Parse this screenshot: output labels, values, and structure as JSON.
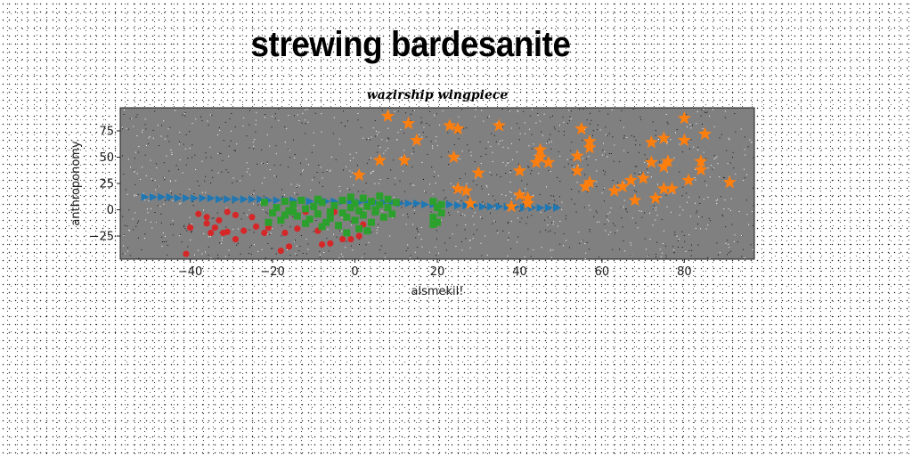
{
  "figure_title": "strewing bardesanite",
  "chart_data": {
    "type": "scatter",
    "title": "wazirship wingpiece",
    "xlabel": "alsmekil!",
    "ylabel": "anthroponomy",
    "xlim": [
      -57,
      97
    ],
    "ylim": [
      -47,
      97
    ],
    "xticks": [
      -40,
      -20,
      0,
      20,
      40,
      60,
      80
    ],
    "yticks": [
      -25,
      0,
      25,
      50,
      75
    ],
    "grid": false,
    "background": "#808080",
    "series": [
      {
        "marker": "triangle-right",
        "color": "#1f77b4",
        "points": [
          [
            -51,
            12
          ],
          [
            -49,
            12
          ],
          [
            -47,
            12
          ],
          [
            -45,
            12
          ],
          [
            -43,
            11
          ],
          [
            -41,
            11
          ],
          [
            -39,
            11
          ],
          [
            -37,
            11
          ],
          [
            -35,
            11
          ],
          [
            -33,
            10
          ],
          [
            -31,
            10
          ],
          [
            -29,
            10
          ],
          [
            -27,
            10
          ],
          [
            -25,
            10
          ],
          [
            -23,
            10
          ],
          [
            -21,
            9
          ],
          [
            -19,
            9
          ],
          [
            -17,
            9
          ],
          [
            -15,
            9
          ],
          [
            -13,
            9
          ],
          [
            -11,
            8
          ],
          [
            -9,
            8
          ],
          [
            -7,
            8
          ],
          [
            -5,
            8
          ],
          [
            -3,
            8
          ],
          [
            -1,
            8
          ],
          [
            1,
            7
          ],
          [
            3,
            7
          ],
          [
            5,
            7
          ],
          [
            7,
            7
          ],
          [
            9,
            7
          ],
          [
            11,
            6
          ],
          [
            13,
            6
          ],
          [
            15,
            6
          ],
          [
            17,
            5
          ],
          [
            19,
            5
          ],
          [
            21,
            5
          ],
          [
            23,
            5
          ],
          [
            25,
            4
          ],
          [
            27,
            4
          ],
          [
            29,
            4
          ],
          [
            31,
            3
          ],
          [
            33,
            3
          ],
          [
            35,
            3
          ],
          [
            37,
            3
          ],
          [
            39,
            3
          ],
          [
            41,
            2
          ],
          [
            43,
            2
          ],
          [
            45,
            2
          ],
          [
            47,
            2
          ],
          [
            49,
            2
          ]
        ]
      },
      {
        "marker": "star",
        "color": "#ff7f0e",
        "points": [
          [
            8,
            89
          ],
          [
            13,
            82
          ],
          [
            15,
            66
          ],
          [
            12,
            47
          ],
          [
            6,
            47
          ],
          [
            1,
            33
          ],
          [
            23,
            80
          ],
          [
            25,
            77
          ],
          [
            35,
            80
          ],
          [
            24,
            50
          ],
          [
            30,
            35
          ],
          [
            25,
            20
          ],
          [
            27,
            18
          ],
          [
            28,
            6
          ],
          [
            38,
            3
          ],
          [
            40,
            37
          ],
          [
            40,
            14
          ],
          [
            42,
            11
          ],
          [
            42,
            6
          ],
          [
            44,
            45
          ],
          [
            45,
            50
          ],
          [
            45,
            57
          ],
          [
            47,
            45
          ],
          [
            54,
            51
          ],
          [
            55,
            77
          ],
          [
            57,
            65
          ],
          [
            57,
            59
          ],
          [
            54,
            37
          ],
          [
            57,
            26
          ],
          [
            56,
            22
          ],
          [
            63,
            18
          ],
          [
            65,
            22
          ],
          [
            67,
            28
          ],
          [
            68,
            9
          ],
          [
            70,
            30
          ],
          [
            72,
            64
          ],
          [
            72,
            45
          ],
          [
            73,
            11
          ],
          [
            75,
            68
          ],
          [
            75,
            41
          ],
          [
            75,
            20
          ],
          [
            76,
            46
          ],
          [
            77,
            20
          ],
          [
            80,
            87
          ],
          [
            80,
            66
          ],
          [
            81,
            28
          ],
          [
            84,
            46
          ],
          [
            84,
            38
          ],
          [
            85,
            72
          ],
          [
            91,
            26
          ]
        ]
      },
      {
        "marker": "circle",
        "color": "#d62728",
        "points": [
          [
            -41,
            -42
          ],
          [
            -40,
            -17
          ],
          [
            -38,
            -4
          ],
          [
            -36,
            -7
          ],
          [
            -36,
            -13
          ],
          [
            -35,
            -22
          ],
          [
            -33,
            -10
          ],
          [
            -32,
            -22
          ],
          [
            -31,
            -21
          ],
          [
            -31,
            -2
          ],
          [
            -29,
            -5
          ],
          [
            -29,
            -28
          ],
          [
            -27,
            -20
          ],
          [
            -25,
            -7
          ],
          [
            -24,
            -16
          ],
          [
            -22,
            -22
          ],
          [
            -21,
            -17
          ],
          [
            -18,
            -39
          ],
          [
            -17,
            -22
          ],
          [
            -16,
            -35
          ],
          [
            -14,
            -18
          ],
          [
            -12,
            -2
          ],
          [
            -9,
            -20
          ],
          [
            -8,
            -33
          ],
          [
            -6,
            -32
          ],
          [
            -5,
            -2
          ],
          [
            -3,
            -28
          ],
          [
            -1,
            -28
          ],
          [
            1,
            -25
          ],
          [
            2,
            -14
          ],
          [
            -34,
            -17
          ]
        ]
      },
      {
        "marker": "square",
        "color": "#2ca02c",
        "points": [
          [
            -22,
            7
          ],
          [
            -20,
            -3
          ],
          [
            -19,
            2
          ],
          [
            -18,
            -10
          ],
          [
            -17,
            8
          ],
          [
            -16,
            -1
          ],
          [
            -15,
            5
          ],
          [
            -14,
            -6
          ],
          [
            -13,
            9
          ],
          [
            -12,
            1
          ],
          [
            -11,
            -9
          ],
          [
            -10,
            3
          ],
          [
            -9,
            -4
          ],
          [
            -8,
            7
          ],
          [
            -7,
            -12
          ],
          [
            -6,
            -2
          ],
          [
            -5,
            4
          ],
          [
            -4,
            -15
          ],
          [
            -3,
            9
          ],
          [
            -2,
            -7
          ],
          [
            -1,
            2
          ],
          [
            0,
            -10
          ],
          [
            0,
            6
          ],
          [
            1,
            -1
          ],
          [
            2,
            11
          ],
          [
            2,
            -5
          ],
          [
            3,
            3
          ],
          [
            4,
            -12
          ],
          [
            4,
            8
          ],
          [
            5,
            -2
          ],
          [
            6,
            13
          ],
          [
            6,
            5
          ],
          [
            7,
            -7
          ],
          [
            8,
            10
          ],
          [
            8,
            2
          ],
          [
            9,
            -4
          ],
          [
            10,
            7
          ],
          [
            -21,
            -12
          ],
          [
            -17,
            -5
          ],
          [
            -12,
            -13
          ],
          [
            -9,
            10
          ],
          [
            -6,
            -8
          ],
          [
            -3,
            -3
          ],
          [
            -1,
            12
          ],
          [
            1,
            -18
          ],
          [
            3,
            -20
          ],
          [
            5,
            0
          ],
          [
            -15,
            -2
          ],
          [
            -8,
            -16
          ],
          [
            -2,
            -22
          ],
          [
            19,
            8
          ],
          [
            20,
            2
          ],
          [
            19,
            -7
          ],
          [
            21,
            -3
          ],
          [
            19,
            -14
          ],
          [
            20,
            -12
          ],
          [
            21,
            5
          ]
        ]
      }
    ]
  }
}
